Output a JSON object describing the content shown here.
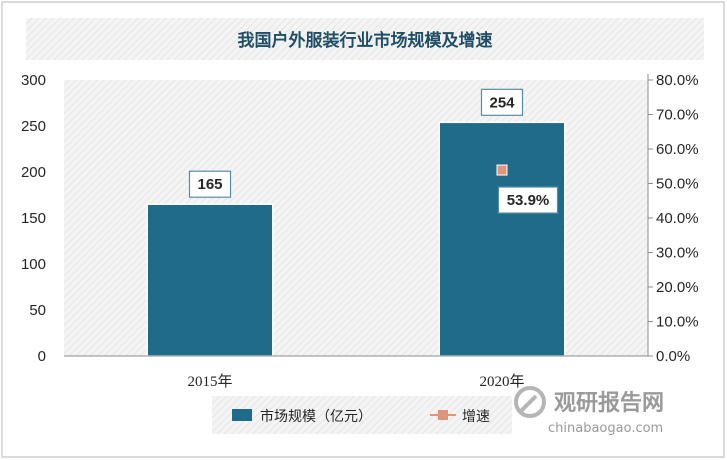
{
  "chart_data": {
    "type": "bar",
    "title": "我国户外服装行业市场规模及增速",
    "categories": [
      "2015年",
      "2020年"
    ],
    "series": [
      {
        "name": "市场规模（亿元）",
        "type": "bar",
        "axis": "left",
        "values": [
          165,
          254
        ],
        "labels": [
          "165",
          "254"
        ],
        "color": "#1f6b8a"
      },
      {
        "name": "增速",
        "type": "line",
        "axis": "right",
        "values": [
          null,
          53.9
        ],
        "labels": [
          null,
          "53.9%"
        ],
        "color": "#e0957a"
      }
    ],
    "y_left": {
      "range": [
        0,
        300
      ],
      "ticks": [
        "0",
        "50",
        "100",
        "150",
        "200",
        "250",
        "300"
      ]
    },
    "y_right": {
      "range": [
        0,
        80
      ],
      "ticks": [
        "0.0%",
        "10.0%",
        "20.0%",
        "30.0%",
        "40.0%",
        "50.0%",
        "60.0%",
        "70.0%",
        "80.0%"
      ]
    },
    "legend_position": "bottom",
    "grid": false
  },
  "watermark": {
    "brand": "观研报告网",
    "url": "chinabaogao.com"
  },
  "colors": {
    "bar": "#1f6b8a",
    "marker": "#e0957a",
    "title": "#1f4e66",
    "accent": "#2e7fa6"
  }
}
